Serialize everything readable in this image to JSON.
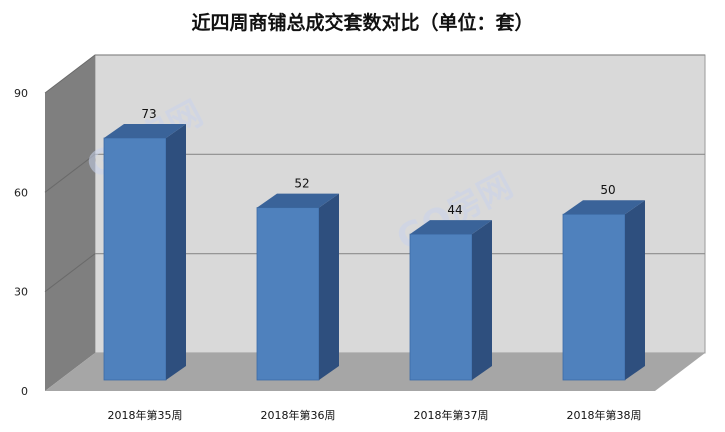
{
  "chart_data": {
    "type": "bar",
    "title": "近四周商铺总成交套数对比（单位：套）",
    "categories": [
      "2018年第35周",
      "2018年第36周",
      "2018年第37周",
      "2018年第38周"
    ],
    "values": [
      73,
      52,
      44,
      50
    ],
    "yticks": [
      0,
      30,
      60,
      90
    ],
    "ylim": [
      0,
      90
    ],
    "grid": true,
    "legend": "none",
    "xlabel": "",
    "ylabel": ""
  },
  "watermark": "GO房网",
  "colors": {
    "bar_front": "#4f81bd",
    "bar_side": "#2e4f7e",
    "bar_top": "#3a6399",
    "back_wall": "#d9d9d9",
    "side_wall": "#7f7f7f",
    "floor": "#a6a6a6",
    "grid": "#8c8c8c"
  }
}
